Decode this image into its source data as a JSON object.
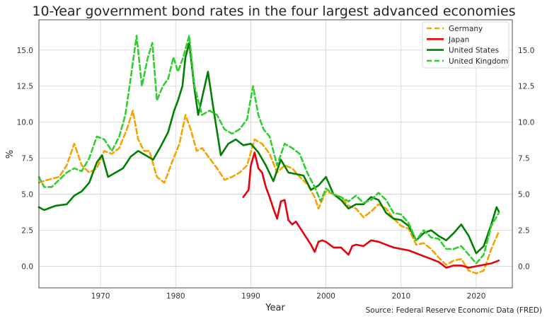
{
  "chart_data": {
    "type": "line",
    "title": "10-Year government bond rates in the four largest advanced economies",
    "xlabel": "Year",
    "ylabel": "%",
    "source": "Source: Federal Reserve Economic Data (FRED)",
    "xlim": [
      1961.8,
      2024.8
    ],
    "ylim": [
      -1.5,
      17.1
    ],
    "grid": true,
    "legend_position": "top-right",
    "x_ticks": [
      {
        "value": 1970,
        "label": "1970"
      },
      {
        "value": 1980,
        "label": "1980"
      },
      {
        "value": 1990,
        "label": "1990"
      },
      {
        "value": 2000,
        "label": "2000"
      },
      {
        "value": 2010,
        "label": "2010"
      },
      {
        "value": 2020,
        "label": "2020"
      }
    ],
    "y_ticks": [
      {
        "value": 0,
        "label": "0.0"
      },
      {
        "value": 2.5,
        "label": "2.5"
      },
      {
        "value": 5,
        "label": "5.0"
      },
      {
        "value": 7.5,
        "label": "7.5"
      },
      {
        "value": 10,
        "label": "10.0"
      },
      {
        "value": 12.5,
        "label": "12.5"
      },
      {
        "value": 15,
        "label": "15.0"
      }
    ],
    "series": [
      {
        "name": "Germany",
        "color": "#f5a300",
        "dashed": true,
        "x": [
          1961.8,
          1963,
          1964.5,
          1965.5,
          1966.5,
          1967.5,
          1968.5,
          1969.5,
          1970.5,
          1971.5,
          1972.5,
          1973.5,
          1974.3,
          1975,
          1975.8,
          1976.5,
          1977.5,
          1978.5,
          1979.5,
          1980.5,
          1981.3,
          1982,
          1982.8,
          1983.5,
          1984.5,
          1985.5,
          1986.5,
          1987.5,
          1988.5,
          1989.5,
          1990.5,
          1991.5,
          1992.5,
          1993.5,
          1994.5,
          1995.5,
          1996.5,
          1997.5,
          1998.5,
          1999,
          2000,
          2001,
          2002,
          2003,
          2004,
          2005,
          2006,
          2007,
          2008,
          2009,
          2010,
          2011,
          2012,
          2013,
          2014,
          2015,
          2016,
          2017,
          2018,
          2019,
          2020,
          2021,
          2022,
          2023
        ],
        "values": [
          5.8,
          6.0,
          6.2,
          7.0,
          8.5,
          7.0,
          6.5,
          6.8,
          8.0,
          7.8,
          8.2,
          9.5,
          10.8,
          8.8,
          8.0,
          8.0,
          6.2,
          5.8,
          7.2,
          8.5,
          10.5,
          9.5,
          8.0,
          8.2,
          7.5,
          6.8,
          6.0,
          6.2,
          6.5,
          7.0,
          8.8,
          8.5,
          7.8,
          6.5,
          7.0,
          6.8,
          6.2,
          5.7,
          4.8,
          4.0,
          5.2,
          5.0,
          4.8,
          4.2,
          4.0,
          3.4,
          3.8,
          4.3,
          4.0,
          3.3,
          2.8,
          2.6,
          1.5,
          1.6,
          1.2,
          0.6,
          0.1,
          0.4,
          0.5,
          -0.3,
          -0.5,
          -0.3,
          1.2,
          2.4
        ]
      },
      {
        "name": "Japan",
        "color": "#e8000b",
        "dashed": false,
        "x": [
          1989,
          1989.7,
          1990,
          1990.5,
          1991,
          1991.5,
          1992,
          1992.5,
          1993,
          1993.5,
          1994,
          1994.5,
          1995,
          1995.5,
          1996,
          1996.5,
          1997,
          1997.5,
          1998,
          1998.5,
          1999,
          1999.5,
          2000,
          2001,
          2002,
          2003,
          2003.5,
          2004,
          2005,
          2006,
          2007,
          2008,
          2009,
          2010,
          2011,
          2012,
          2013,
          2014,
          2015,
          2016,
          2017,
          2018,
          2019,
          2020,
          2021,
          2022,
          2023
        ],
        "values": [
          4.8,
          5.3,
          7.0,
          7.9,
          6.8,
          6.5,
          5.5,
          4.8,
          4.0,
          3.3,
          4.5,
          4.6,
          3.2,
          2.9,
          3.1,
          2.7,
          2.3,
          1.9,
          1.5,
          1.0,
          1.7,
          1.8,
          1.7,
          1.3,
          1.3,
          0.8,
          1.4,
          1.5,
          1.4,
          1.8,
          1.7,
          1.5,
          1.3,
          1.2,
          1.1,
          0.9,
          0.7,
          0.5,
          0.3,
          -0.1,
          0.05,
          0.05,
          -0.1,
          0.0,
          0.1,
          0.2,
          0.4
        ]
      },
      {
        "name": "United States",
        "color": "#008000",
        "dashed": false,
        "x": [
          1961.8,
          1962.5,
          1964,
          1965.5,
          1966.5,
          1967.5,
          1968.5,
          1969.5,
          1970.2,
          1971,
          1972,
          1973,
          1974,
          1975,
          1976,
          1977,
          1978,
          1979,
          1979.8,
          1980.3,
          1980.9,
          1981.3,
          1981.8,
          1982.5,
          1983,
          1984.3,
          1985,
          1986,
          1987,
          1988,
          1989,
          1990,
          1991,
          1992,
          1993,
          1994,
          1995,
          1996,
          1997,
          1998,
          1999,
          2000,
          2001,
          2002,
          2003,
          2004,
          2005,
          2006,
          2007,
          2008,
          2009,
          2010,
          2011,
          2012,
          2013,
          2014,
          2015,
          2016,
          2017,
          2018,
          2019,
          2020,
          2021,
          2022,
          2022.7,
          2023
        ],
        "values": [
          4.1,
          3.9,
          4.2,
          4.3,
          4.9,
          5.2,
          5.8,
          7.2,
          7.7,
          6.2,
          6.5,
          6.8,
          7.6,
          8.0,
          7.7,
          7.4,
          8.3,
          9.3,
          10.8,
          11.5,
          12.5,
          14.5,
          15.5,
          12.3,
          10.5,
          13.5,
          11.0,
          7.7,
          8.5,
          8.8,
          8.4,
          8.5,
          7.9,
          7.0,
          5.9,
          7.4,
          6.5,
          6.4,
          6.3,
          5.3,
          5.6,
          6.2,
          5.0,
          4.6,
          4.0,
          4.3,
          4.3,
          4.8,
          4.6,
          3.7,
          3.3,
          3.2,
          2.8,
          1.8,
          2.3,
          2.5,
          2.1,
          1.8,
          2.3,
          2.9,
          2.1,
          0.9,
          1.4,
          2.9,
          4.1,
          3.8
        ]
      },
      {
        "name": "United Kingdom",
        "color": "#32cd32",
        "dashed": true,
        "x": [
          1961.8,
          1962.5,
          1963.5,
          1964.5,
          1965.5,
          1966.5,
          1967.5,
          1968.5,
          1969.5,
          1970.5,
          1971.5,
          1972.5,
          1973.3,
          1974,
          1974.8,
          1975.5,
          1976.3,
          1976.9,
          1977.5,
          1978.3,
          1979,
          1979.7,
          1980.3,
          1981,
          1981.8,
          1982.5,
          1983.5,
          1984.5,
          1985.5,
          1986.5,
          1987.5,
          1988.5,
          1989.5,
          1990.3,
          1991,
          1991.7,
          1992.5,
          1993.5,
          1994.5,
          1995.5,
          1996.5,
          1997.5,
          1998.5,
          1999.3,
          2000,
          2001,
          2002,
          2003,
          2004,
          2005,
          2006,
          2007,
          2008,
          2009,
          2010,
          2011,
          2012,
          2013,
          2014,
          2015,
          2016,
          2017,
          2018,
          2019,
          2020,
          2021,
          2022,
          2023
        ],
        "values": [
          6.2,
          5.5,
          5.5,
          6.0,
          6.5,
          6.8,
          6.6,
          7.5,
          9.0,
          8.8,
          8.0,
          9.0,
          10.5,
          13.0,
          16.0,
          12.5,
          14.5,
          15.5,
          11.5,
          12.5,
          13.0,
          14.5,
          13.5,
          14.5,
          16.0,
          12.5,
          10.5,
          10.8,
          10.5,
          9.5,
          9.2,
          9.5,
          10.2,
          12.5,
          10.5,
          9.5,
          9.0,
          7.0,
          8.5,
          8.2,
          7.8,
          6.5,
          5.5,
          4.5,
          5.4,
          5.0,
          4.8,
          4.5,
          4.9,
          4.4,
          4.6,
          5.1,
          4.6,
          3.7,
          3.6,
          3.0,
          1.8,
          2.5,
          2.0,
          1.9,
          1.2,
          1.2,
          1.4,
          0.8,
          0.2,
          0.8,
          2.8,
          3.7
        ]
      }
    ]
  }
}
